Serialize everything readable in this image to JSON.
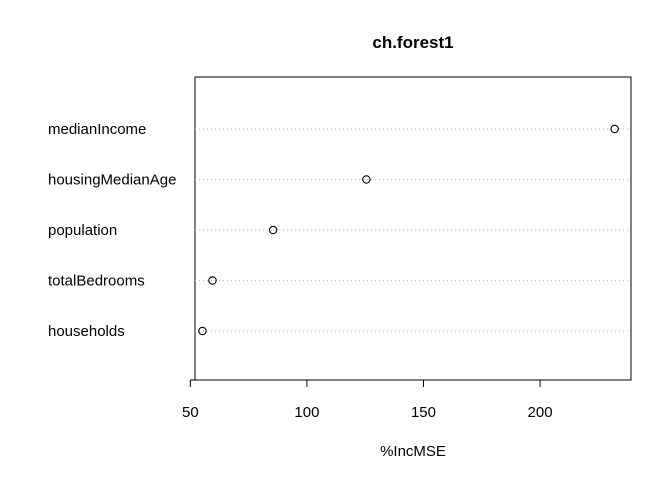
{
  "chart_data": {
    "type": "scatter",
    "title": "ch.forest1",
    "xlabel": "%IncMSE",
    "ylabel": "",
    "xlim": [
      52,
      239
    ],
    "x_ticks": [
      50,
      100,
      150,
      200
    ],
    "categories": [
      "medianIncome",
      "housingMedianAge",
      "population",
      "totalBedrooms",
      "households"
    ],
    "values": [
      232,
      125.5,
      85.5,
      59.5,
      55.2
    ],
    "grid": "dotted horizontal guide lines per category",
    "legend": "none",
    "colors": {
      "axis": "#000000",
      "points": "#000000",
      "guides": "#bdbdbd",
      "background": "#ffffff"
    }
  }
}
